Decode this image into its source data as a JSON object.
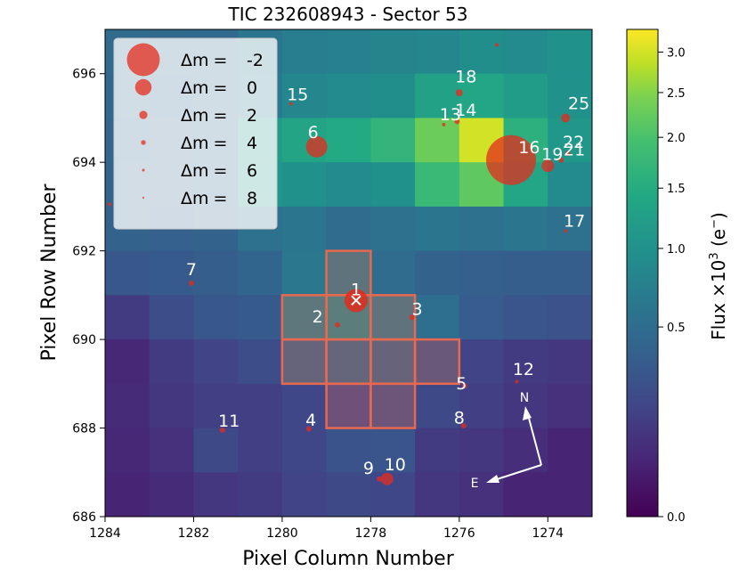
{
  "chart_data": {
    "type": "heatmap",
    "title": "TIC 232608943 - Sector 53",
    "xlabel": "Pixel Column Number",
    "ylabel": "Pixel Row Number",
    "x_range": [
      1284,
      1273
    ],
    "y_range": [
      686,
      697
    ],
    "x_ticks": [
      1284,
      1282,
      1280,
      1278,
      1276,
      1274
    ],
    "x_tick_labels": [
      "1284",
      "1282",
      "1280",
      "1278",
      "1276",
      "1274"
    ],
    "y_ticks": [
      686,
      688,
      690,
      692,
      694,
      696
    ],
    "y_tick_labels": [
      "686",
      "688",
      "690",
      "692",
      "694",
      "696"
    ],
    "flux_grid_top_to_bottom": [
      [
        0.48,
        0.46,
        0.45,
        0.6,
        0.7,
        0.75,
        0.8,
        0.85,
        0.95,
        0.9,
        1.0
      ],
      [
        0.45,
        0.44,
        0.46,
        0.66,
        0.85,
        0.9,
        0.95,
        1.3,
        1.4,
        1.2,
        1.0
      ],
      [
        0.44,
        0.43,
        0.48,
        1.2,
        1.35,
        1.45,
        1.7,
        2.3,
        3.0,
        1.6,
        1.1
      ],
      [
        0.42,
        0.42,
        0.45,
        1.1,
        1.0,
        0.9,
        1.0,
        1.8,
        2.2,
        1.4,
        0.9
      ],
      [
        0.4,
        0.38,
        0.4,
        0.55,
        0.6,
        0.5,
        0.55,
        0.6,
        0.55,
        0.6,
        0.55
      ],
      [
        0.3,
        0.32,
        0.35,
        0.42,
        0.62,
        0.64,
        0.5,
        0.4,
        0.36,
        0.35,
        0.35
      ],
      [
        0.12,
        0.22,
        0.3,
        0.32,
        0.7,
        0.82,
        0.62,
        0.52,
        0.34,
        0.28,
        0.25
      ],
      [
        0.05,
        0.12,
        0.16,
        0.22,
        0.4,
        0.42,
        0.38,
        0.26,
        0.16,
        0.12,
        0.1
      ],
      [
        0.06,
        0.1,
        0.14,
        0.14,
        0.18,
        0.18,
        0.22,
        0.2,
        0.14,
        0.1,
        0.08
      ],
      [
        0.05,
        0.08,
        0.2,
        0.14,
        0.18,
        0.26,
        0.28,
        0.12,
        0.1,
        0.07,
        0.04
      ],
      [
        0.04,
        0.06,
        0.1,
        0.12,
        0.16,
        0.2,
        0.18,
        0.1,
        0.08,
        0.04,
        0.04
      ]
    ],
    "aperture_cells": [
      [
        1279,
        692
      ],
      [
        1280,
        691
      ],
      [
        1279,
        691
      ],
      [
        1278,
        691
      ],
      [
        1280,
        690
      ],
      [
        1279,
        690
      ],
      [
        1278,
        690
      ],
      [
        1277,
        690
      ],
      [
        1279,
        689
      ],
      [
        1278,
        689
      ]
    ],
    "target": {
      "label": "1",
      "x": 1278.33,
      "y": 690.88,
      "size": 13
    },
    "stars": [
      {
        "label": "2",
        "x": 1278.75,
        "y": 690.33,
        "size": 3,
        "lx": 1279.2,
        "ly": 690.38
      },
      {
        "label": "3",
        "x": 1277.07,
        "y": 690.5,
        "size": 3,
        "lx": 1276.95,
        "ly": 690.55
      },
      {
        "label": "4",
        "x": 1279.4,
        "y": 687.98,
        "size": 3,
        "lx": 1279.35,
        "ly": 688.05
      },
      {
        "label": "5",
        "x": 1275.88,
        "y": 688.95,
        "size": 3,
        "lx": 1275.95,
        "ly": 688.88
      },
      {
        "label": "6",
        "x": 1279.22,
        "y": 694.35,
        "size": 12,
        "lx": 1279.3,
        "ly": 694.55
      },
      {
        "label": "7",
        "x": 1282.05,
        "y": 691.27,
        "size": 3,
        "lx": 1282.05,
        "ly": 691.45
      },
      {
        "label": "8",
        "x": 1275.9,
        "y": 688.05,
        "size": 3,
        "lx": 1276.0,
        "ly": 688.1
      },
      {
        "label": "9",
        "x": 1277.8,
        "y": 686.85,
        "size": 3,
        "lx": 1278.05,
        "ly": 686.97
      },
      {
        "label": "10",
        "x": 1277.63,
        "y": 686.85,
        "size": 7,
        "lx": 1277.45,
        "ly": 687.05
      },
      {
        "label": "11",
        "x": 1281.35,
        "y": 687.95,
        "size": 3,
        "lx": 1281.2,
        "ly": 688.03
      },
      {
        "label": "12",
        "x": 1274.7,
        "y": 689.05,
        "size": 2,
        "lx": 1274.55,
        "ly": 689.2
      },
      {
        "label": "13",
        "x": 1276.35,
        "y": 694.85,
        "size": 2,
        "lx": 1276.2,
        "ly": 694.95
      },
      {
        "label": "14",
        "x": 1276.05,
        "y": 694.92,
        "size": 3,
        "lx": 1275.85,
        "ly": 695.05
      },
      {
        "label": "15",
        "x": 1279.8,
        "y": 695.32,
        "size": 2,
        "lx": 1279.65,
        "ly": 695.4
      },
      {
        "label": "16",
        "x": 1274.83,
        "y": 694.05,
        "size": 28,
        "lx": 1274.42,
        "ly": 694.2
      },
      {
        "label": "17",
        "x": 1273.6,
        "y": 692.45,
        "size": 2,
        "lx": 1273.4,
        "ly": 692.55
      },
      {
        "label": "18",
        "x": 1276.0,
        "y": 695.57,
        "size": 4,
        "lx": 1275.85,
        "ly": 695.8
      },
      {
        "label": "19",
        "x": 1274.0,
        "y": 693.92,
        "size": 7,
        "lx": 1273.9,
        "ly": 694.05
      },
      {
        "label": "21",
        "x": 1273.7,
        "y": 694.05,
        "size": 3,
        "lx": 1273.4,
        "ly": 694.15
      },
      {
        "label": "22",
        "x": 1273.55,
        "y": 694.2,
        "size": 3,
        "lx": 1273.42,
        "ly": 694.33
      },
      {
        "label": "25",
        "x": 1273.6,
        "y": 695.0,
        "size": 5,
        "lx": 1273.3,
        "ly": 695.2
      }
    ],
    "extra_points": [
      {
        "x": 1275.15,
        "y": 696.65,
        "size": 2
      },
      {
        "x": 1283.9,
        "y": 693.05,
        "size": 2
      }
    ],
    "compass": {
      "north_label": "N",
      "east_label": "E"
    },
    "legend": {
      "location": "upper-left",
      "entries": [
        {
          "symbol": "Δm",
          "eq": "=",
          "value": "-2",
          "size": 24
        },
        {
          "symbol": "Δm",
          "eq": "=",
          "value": "0",
          "size": 12
        },
        {
          "symbol": "Δm",
          "eq": "=",
          "value": "2",
          "size": 6
        },
        {
          "symbol": "Δm",
          "eq": "=",
          "value": "4",
          "size": 3.5
        },
        {
          "symbol": "Δm",
          "eq": "=",
          "value": "6",
          "size": 2
        },
        {
          "symbol": "Δm",
          "eq": "=",
          "value": "8",
          "size": 1.4
        }
      ]
    },
    "colorbar": {
      "label_prefix": "Flux ×10",
      "label_exp": "3",
      "label_unit": " (e",
      "label_unit_sup": "−",
      "label_close": ")",
      "range": [
        0,
        3.3
      ],
      "ticks": [
        0.0,
        0.5,
        1.0,
        1.5,
        2.0,
        2.5,
        3.0
      ],
      "tick_labels": [
        "0.0",
        "0.5",
        "1.0",
        "1.5",
        "2.0",
        "2.5",
        "3.0"
      ]
    },
    "colors": {
      "aperture": "#e8694f",
      "star": "#e32c1d",
      "target_cross": "#ffffff",
      "annotation_text": "#ffffff"
    }
  }
}
